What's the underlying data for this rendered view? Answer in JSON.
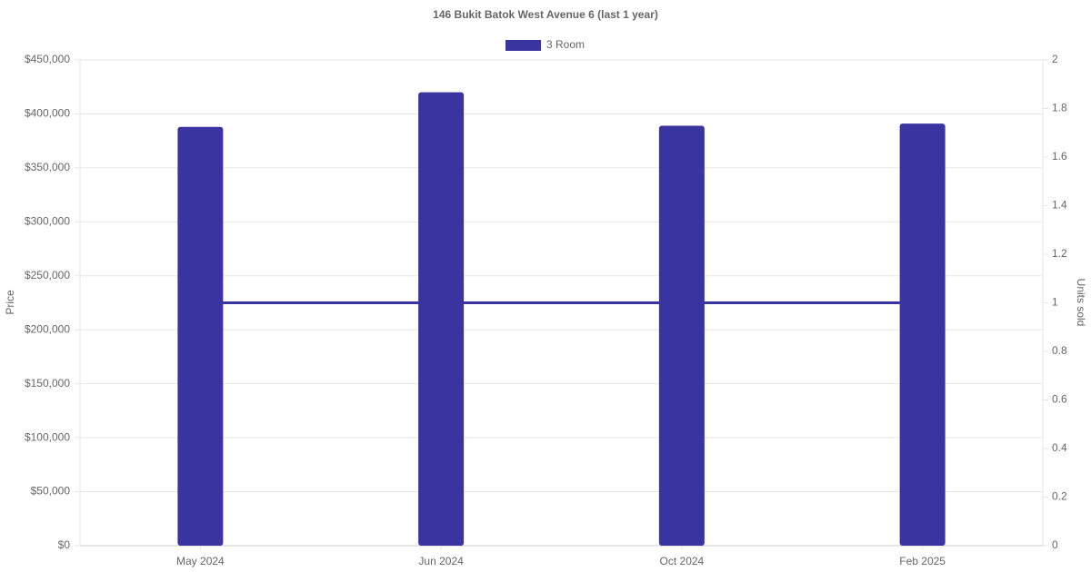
{
  "chart_data": {
    "type": "bar",
    "title": "146 Bukit Batok West Avenue 6 (last 1 year)",
    "y_label": "Price",
    "y2_label": "Units sold",
    "categories": [
      "May 2024",
      "Jun 2024",
      "Oct 2024",
      "Feb 2025"
    ],
    "series": [
      {
        "name": "3 Room",
        "type": "bar",
        "color": "#3a34a0",
        "values": [
          388000,
          420000,
          389000,
          391000
        ]
      },
      {
        "type": "line",
        "axis": "y2",
        "color": "#3a34a0",
        "values": [
          1,
          1,
          1,
          1
        ]
      }
    ],
    "ylim": [
      0,
      450000
    ],
    "yticks": [
      {
        "value": 0,
        "label": "$0"
      },
      {
        "value": 50000,
        "label": "$50,000"
      },
      {
        "value": 100000,
        "label": "$100,000"
      },
      {
        "value": 150000,
        "label": "$150,000"
      },
      {
        "value": 200000,
        "label": "$200,000"
      },
      {
        "value": 250000,
        "label": "$250,000"
      },
      {
        "value": 300000,
        "label": "$300,000"
      },
      {
        "value": 350000,
        "label": "$350,000"
      },
      {
        "value": 400000,
        "label": "$400,000"
      },
      {
        "value": 450000,
        "label": "$450,000"
      }
    ],
    "y2lim": [
      0,
      2
    ],
    "y2ticks": [
      0,
      0.2,
      0.4,
      0.6,
      0.8,
      1,
      1.2,
      1.4,
      1.6,
      1.8,
      2
    ],
    "grid": true,
    "legend": "top"
  }
}
